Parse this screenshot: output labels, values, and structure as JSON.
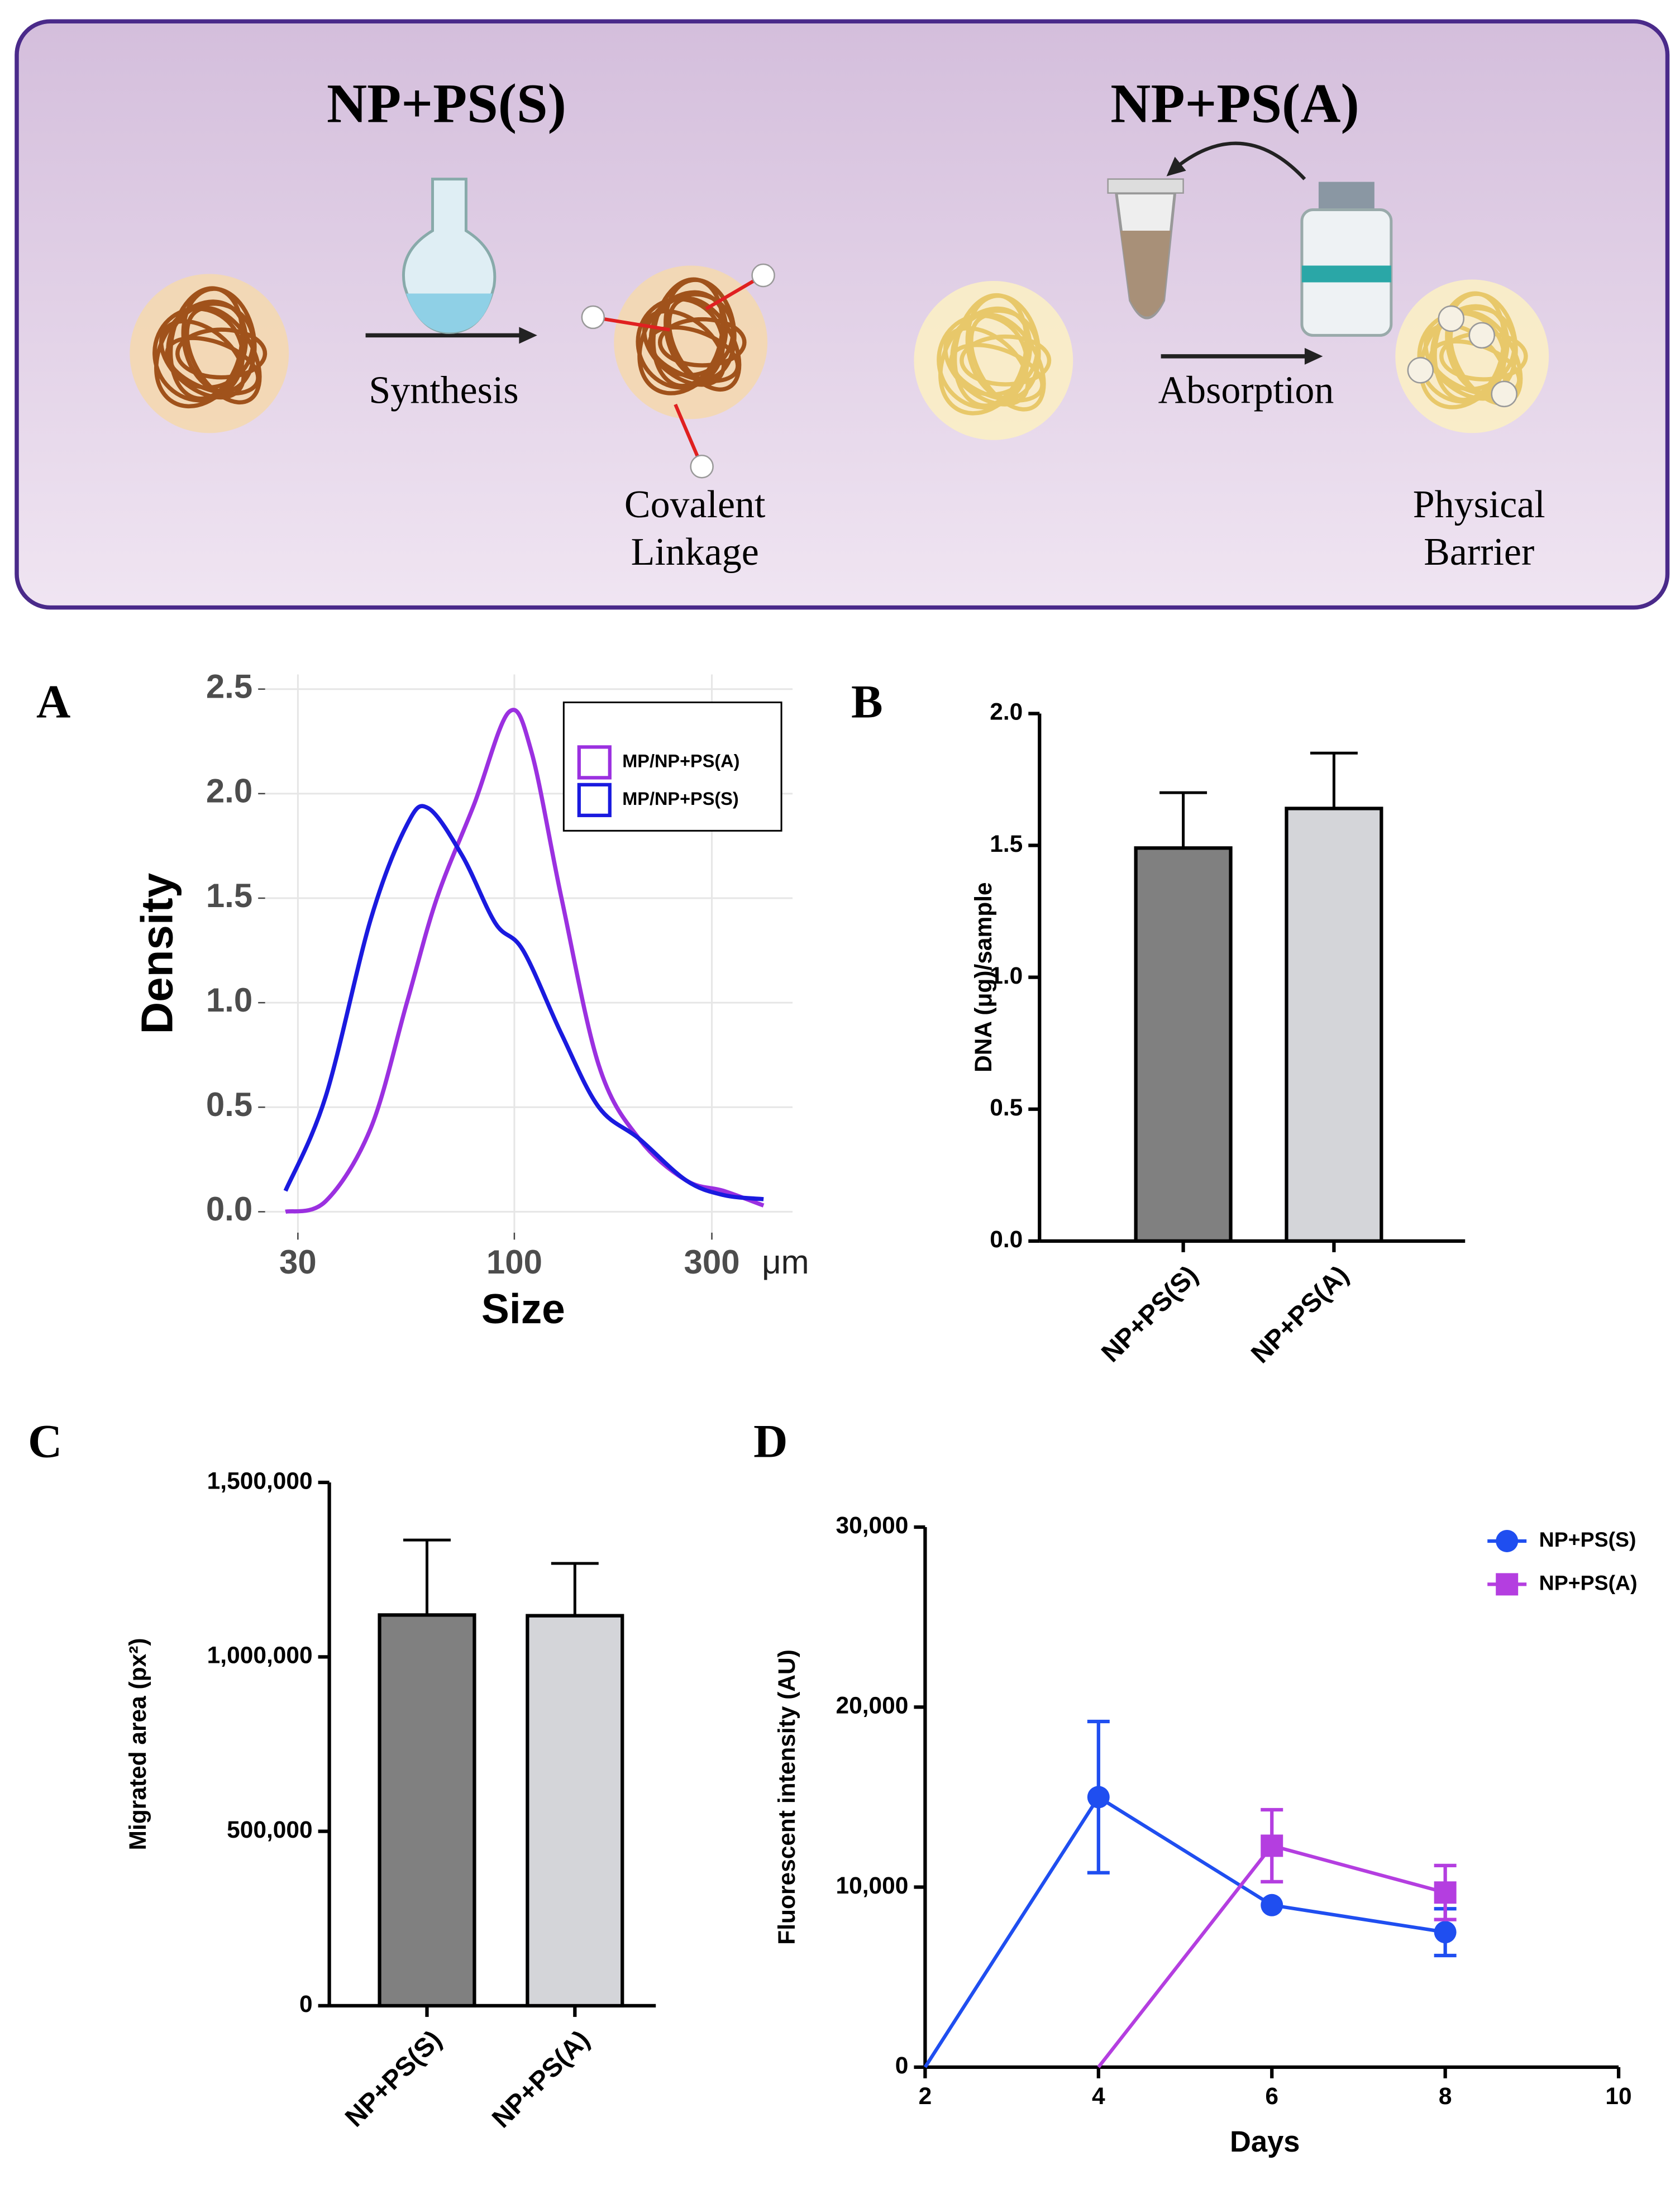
{
  "diagram": {
    "left_title": "NP+PS(S)",
    "right_title": "NP+PS(A)",
    "left_step": "Synthesis",
    "right_step": "Absorption",
    "left_note": [
      "Covalent",
      "Linkage"
    ],
    "right_note": [
      "Physical",
      "Barrier"
    ]
  },
  "chart_data": [
    {
      "type": "line",
      "panel": "A",
      "x_label": "Size",
      "x_unit": "μm",
      "y_label": "Density",
      "log_x": true,
      "grid": true,
      "legend": "upper right",
      "xlim": [
        25,
        470
      ],
      "xticks": [
        30,
        100,
        300
      ],
      "ylim": [
        -0.1,
        2.57
      ],
      "yticks": [
        {
          "value": 0,
          "label": "0.0"
        },
        0.5,
        {
          "value": 1,
          "label": "1.0"
        },
        1.5,
        {
          "value": 2,
          "label": "2.0"
        },
        2.5
      ],
      "series": [
        {
          "name": "MP/NP+PS(A)",
          "color": "#9b30e0",
          "x": [
            28,
            35,
            45,
            55,
            65,
            80,
            97,
            110,
            130,
            160,
            200,
            260,
            320,
            400
          ],
          "values": [
            0.0,
            0.05,
            0.4,
            1.0,
            1.5,
            1.95,
            2.39,
            2.2,
            1.5,
            0.7,
            0.35,
            0.15,
            0.1,
            0.03
          ]
        },
        {
          "name": "MP/NP+PS(S)",
          "color": "#1a1adf",
          "x": [
            28,
            35,
            45,
            55,
            62,
            75,
            90,
            105,
            130,
            160,
            200,
            260,
            320,
            400
          ],
          "values": [
            0.1,
            0.55,
            1.4,
            1.85,
            1.93,
            1.7,
            1.38,
            1.25,
            0.85,
            0.5,
            0.35,
            0.15,
            0.08,
            0.06
          ]
        }
      ]
    },
    {
      "type": "bar",
      "panel": "B",
      "y_label": "DNA (μg)/sample",
      "categories": [
        "NP+PS(S)",
        "NP+PS(A)"
      ],
      "values": [
        1.49,
        1.64
      ],
      "errors": [
        0.21,
        0.21
      ],
      "colors": [
        "#808080",
        "#d4d5d9"
      ],
      "ylim": [
        0,
        2
      ],
      "yticks": [
        {
          "value": 0,
          "label": "0.0"
        },
        0.5,
        {
          "value": 1,
          "label": "1.0"
        },
        1.5,
        {
          "value": 2,
          "label": "2.0"
        }
      ]
    },
    {
      "type": "bar",
      "panel": "C",
      "y_label": "Migrated area (px²)",
      "categories": [
        "NP+PS(S)",
        "NP+PS(A)"
      ],
      "values": [
        1120000,
        1118000
      ],
      "errors": [
        215000,
        150000
      ],
      "colors": [
        "#808080",
        "#d4d5d9"
      ],
      "ylim": [
        0,
        1500000
      ],
      "yticks": [
        0,
        {
          "value": 500000,
          "label": "500,000"
        },
        {
          "value": 1000000,
          "label": "1,000,000"
        },
        {
          "value": 1500000,
          "label": "1,500,000"
        }
      ]
    },
    {
      "type": "line",
      "panel": "D",
      "x_label": "Days",
      "y_label": "Fluorescent intensity (AU)",
      "legend": "upper right",
      "xlim": [
        2,
        10
      ],
      "xticks": [
        2,
        4,
        6,
        8,
        10
      ],
      "ylim": [
        0,
        30000
      ],
      "yticks": [
        0,
        {
          "value": 10000,
          "label": "10,000"
        },
        {
          "value": 20000,
          "label": "20,000"
        },
        {
          "value": 30000,
          "label": "30,000"
        }
      ],
      "series": [
        {
          "name": "NP+PS(S)",
          "color": "#1f4ef0",
          "marker": "circle",
          "x": [
            2,
            4,
            6,
            8
          ],
          "values": [
            0,
            15000,
            9000,
            7500
          ],
          "errors": [
            0,
            4200,
            0,
            1300
          ]
        },
        {
          "name": "NP+PS(A)",
          "color": "#b43ee0",
          "marker": "square",
          "x": [
            4,
            6,
            8
          ],
          "values": [
            0,
            12300,
            9700
          ],
          "errors": [
            0,
            2000,
            1500
          ]
        }
      ]
    }
  ]
}
